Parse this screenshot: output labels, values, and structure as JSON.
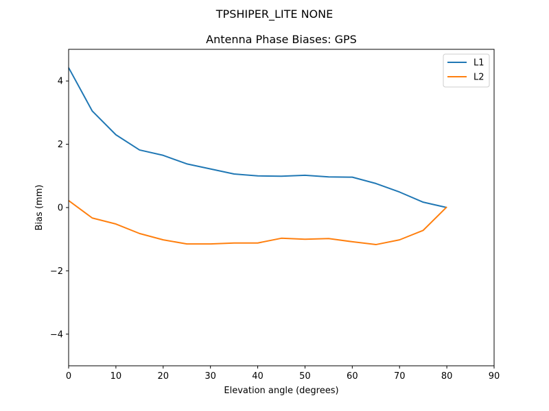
{
  "figure": {
    "suptitle": "TPSHIPER_LITE   NONE"
  },
  "chart_data": {
    "type": "line",
    "title": "Antenna Phase Biases: GPS",
    "xlabel": "Elevation angle (degrees)",
    "ylabel": "Bias (mm)",
    "xlim": [
      0,
      90
    ],
    "ylim": [
      -5,
      5
    ],
    "xticks": [
      0,
      10,
      20,
      30,
      40,
      50,
      60,
      70,
      80,
      90
    ],
    "yticks": [
      -4,
      -2,
      0,
      2,
      4
    ],
    "ytick_labels": [
      "−4",
      "−2",
      "0",
      "2",
      "4"
    ],
    "grid": false,
    "legend_position": "top-right",
    "x": [
      0,
      5,
      10,
      15,
      20,
      25,
      30,
      35,
      40,
      45,
      50,
      55,
      60,
      65,
      70,
      75,
      80
    ],
    "series": [
      {
        "name": "L1",
        "color": "#1f77b4",
        "values": [
          4.42,
          3.05,
          2.3,
          1.82,
          1.65,
          1.38,
          1.22,
          1.06,
          1.0,
          0.99,
          1.02,
          0.97,
          0.96,
          0.76,
          0.49,
          0.17,
          0.0
        ]
      },
      {
        "name": "L2",
        "color": "#ff7f0e",
        "values": [
          0.22,
          -0.33,
          -0.52,
          -0.82,
          -1.02,
          -1.15,
          -1.15,
          -1.12,
          -1.12,
          -0.97,
          -1.0,
          -0.98,
          -1.08,
          -1.17,
          -1.02,
          -0.72,
          0.02
        ]
      }
    ]
  }
}
